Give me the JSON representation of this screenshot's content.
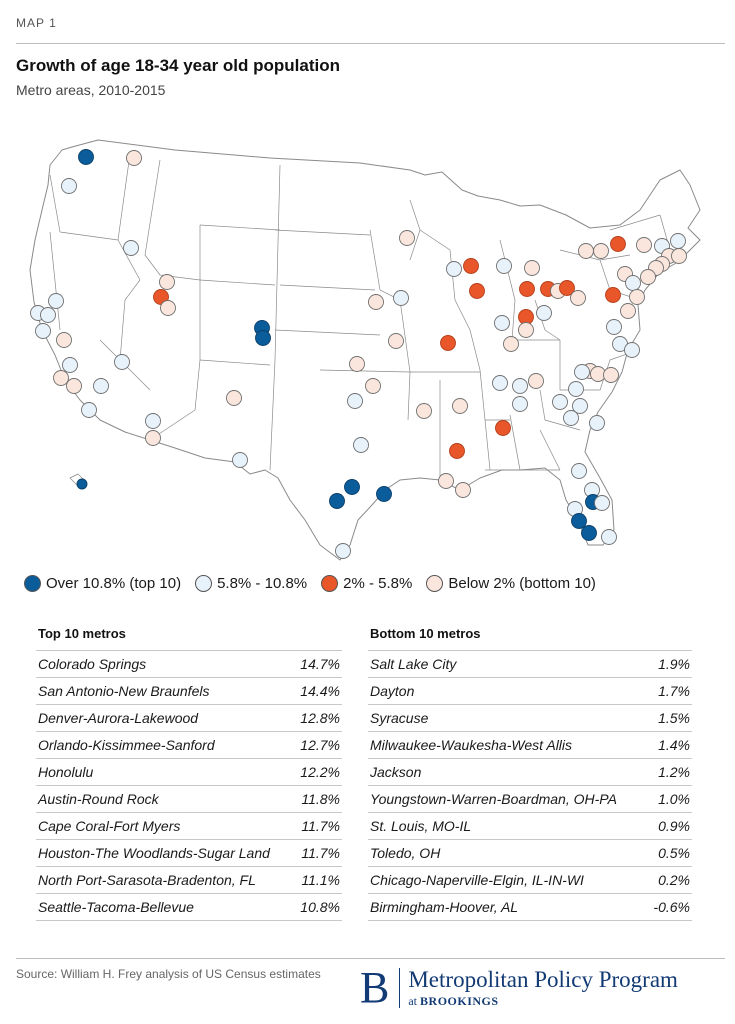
{
  "header": {
    "kicker": "MAP 1",
    "title": "Growth of age 18-34 year old population",
    "subtitle": "Metro areas, 2010-2015"
  },
  "colors": {
    "top10": "#0b5c9a",
    "mid_high": "#e8f2fb",
    "mid_low": "#e8562a",
    "bottom10": "#fbe6dd",
    "map_fill": "#ffffff",
    "map_stroke": "#8a8a8a",
    "brand": "#123a74"
  },
  "legend": [
    {
      "key": "top10",
      "label": "Over 10.8% (top 10)"
    },
    {
      "key": "mid_high",
      "label": "5.8% - 10.8%"
    },
    {
      "key": "mid_low",
      "label": "2% - 5.8%"
    },
    {
      "key": "bottom10",
      "label": "Below 2% (bottom 10)"
    }
  ],
  "top_table": {
    "heading": "Top 10 metros",
    "rows": [
      {
        "metro": "Colorado Springs",
        "value": "14.7%"
      },
      {
        "metro": "San Antonio-New Braunfels",
        "value": "14.4%"
      },
      {
        "metro": "Denver-Aurora-Lakewood",
        "value": "12.8%"
      },
      {
        "metro": "Orlando-Kissimmee-Sanford",
        "value": "12.7%"
      },
      {
        "metro": "Honolulu",
        "value": "12.2%"
      },
      {
        "metro": "Austin-Round Rock",
        "value": "11.8%"
      },
      {
        "metro": "Cape Coral-Fort Myers",
        "value": "11.7%"
      },
      {
        "metro": "Houston-The Woodlands-Sugar Land",
        "value": "11.7%"
      },
      {
        "metro": "North Port-Sarasota-Bradenton, FL",
        "value": "11.1%"
      },
      {
        "metro": "Seattle-Tacoma-Bellevue",
        "value": "10.8%"
      }
    ]
  },
  "bottom_table": {
    "heading": "Bottom 10 metros",
    "rows": [
      {
        "metro": "Salt Lake City",
        "value": "1.9%"
      },
      {
        "metro": "Dayton",
        "value": "1.7%"
      },
      {
        "metro": "Syracuse",
        "value": "1.5%"
      },
      {
        "metro": "Milwaukee-Waukesha-West Allis",
        "value": "1.4%"
      },
      {
        "metro": "Jackson",
        "value": "1.2%"
      },
      {
        "metro": "Youngstown-Warren-Boardman, OH-PA",
        "value": "1.0%"
      },
      {
        "metro": "St. Louis, MO-IL",
        "value": "0.9%"
      },
      {
        "metro": "Toledo, OH",
        "value": "0.5%"
      },
      {
        "metro": "Chicago-Naperville-Elgin, IL-IN-WI",
        "value": "0.2%"
      },
      {
        "metro": "Birmingham-Hoover, AL",
        "value": "-0.6%"
      }
    ]
  },
  "footer": {
    "source": "Source: William H. Frey analysis of US Census estimates",
    "brand_letter": "B",
    "brand_name": "Metropolitan Policy Program",
    "brand_at": "at",
    "brand_org": "BROOKINGS"
  }
}
